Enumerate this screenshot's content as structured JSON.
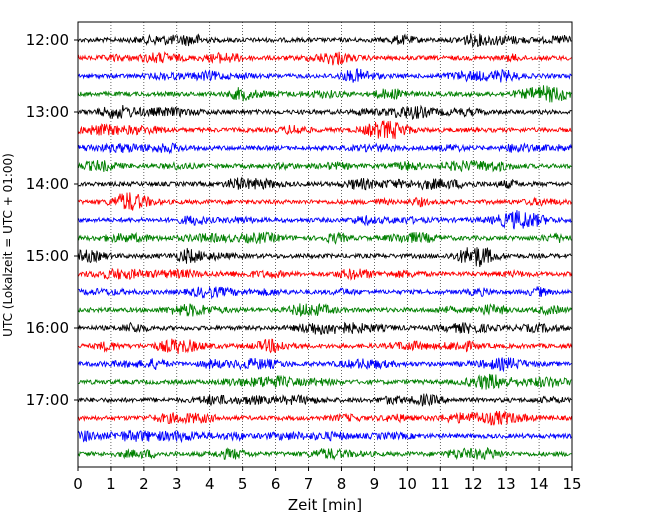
{
  "chart_data": {
    "type": "line",
    "title": "",
    "xlabel": "Zeit  [min]",
    "ylabel": "UTC (Lokalzeit = UTC + 01:00)",
    "xlim": [
      0,
      15
    ],
    "x_ticks": [
      "0",
      "1",
      "2",
      "3",
      "4",
      "5",
      "6",
      "7",
      "8",
      "9",
      "10",
      "11",
      "12",
      "13",
      "14",
      "15"
    ],
    "y_tick_labels": [
      "12:00",
      "13:00",
      "14:00",
      "15:00",
      "16:00",
      "17:00"
    ],
    "grid": "vertical dotted",
    "trace_colors": [
      "#000000",
      "#ff0000",
      "#0000ff",
      "#008000"
    ],
    "minutes_per_trace": 15,
    "traces": [
      {
        "start": "12:00"
      },
      {
        "start": "12:15"
      },
      {
        "start": "12:30"
      },
      {
        "start": "12:45"
      },
      {
        "start": "13:00"
      },
      {
        "start": "13:15"
      },
      {
        "start": "13:30"
      },
      {
        "start": "13:45"
      },
      {
        "start": "14:00"
      },
      {
        "start": "14:15"
      },
      {
        "start": "14:30"
      },
      {
        "start": "14:45"
      },
      {
        "start": "15:00"
      },
      {
        "start": "15:15"
      },
      {
        "start": "15:30"
      },
      {
        "start": "15:45"
      },
      {
        "start": "16:00"
      },
      {
        "start": "16:15"
      },
      {
        "start": "16:30"
      },
      {
        "start": "16:45"
      },
      {
        "start": "17:00"
      },
      {
        "start": "17:15"
      },
      {
        "start": "17:30"
      },
      {
        "start": "17:45"
      }
    ]
  }
}
